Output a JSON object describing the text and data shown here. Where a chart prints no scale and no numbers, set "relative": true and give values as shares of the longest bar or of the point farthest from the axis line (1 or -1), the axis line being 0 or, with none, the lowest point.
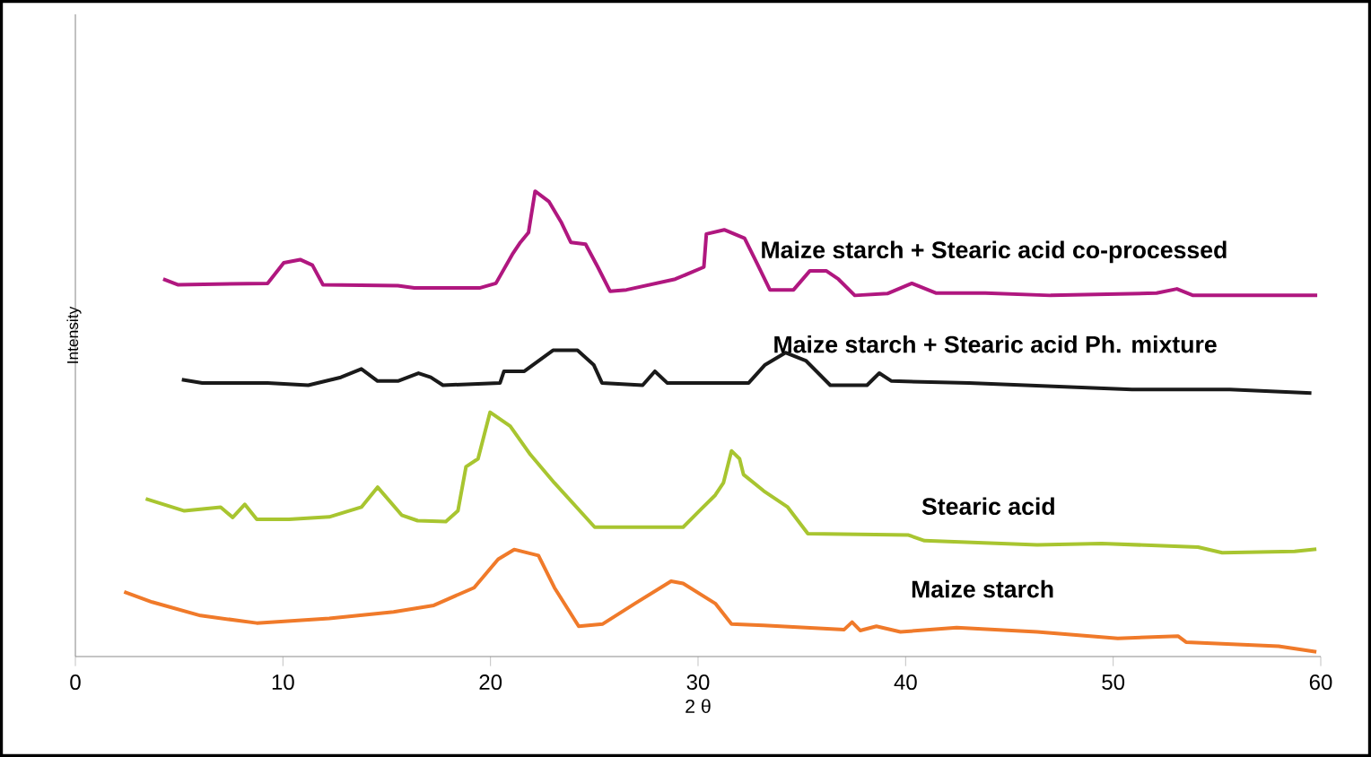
{
  "chart_data": {
    "type": "line",
    "relative": true,
    "xlabel": "2 θ",
    "ylabel": "Intensity",
    "xlim": [
      0,
      60
    ],
    "xticks": [
      0,
      10,
      20,
      30,
      40,
      50,
      60
    ],
    "series": [
      {
        "name": "Maize starch + Stearic acid co-processed",
        "color": "#b0177f",
        "x": [
          4.23,
          4.93,
          9.26,
          10.04,
          10.83,
          11.42,
          11.93,
          15.54,
          16.33,
          19.47,
          20.26,
          21.05,
          21.44,
          21.83,
          22.15,
          22.81,
          23.4,
          23.87,
          24.58,
          25.17,
          25.76,
          26.55,
          28.9,
          30.28,
          30.4,
          31.26,
          32.24,
          32.83,
          33.46,
          34.6,
          35.39,
          36.17,
          36.76,
          37.55,
          39.12,
          40.3,
          41.48,
          43.84,
          46.98,
          52.09,
          53.07,
          53.85,
          59.83
        ],
        "values": [
          0.811,
          0.799,
          0.802,
          0.846,
          0.853,
          0.841,
          0.799,
          0.797,
          0.792,
          0.792,
          0.802,
          0.864,
          0.89,
          0.911,
          1,
          0.978,
          0.934,
          0.89,
          0.886,
          0.837,
          0.785,
          0.788,
          0.811,
          0.837,
          0.908,
          0.917,
          0.899,
          0.846,
          0.788,
          0.788,
          0.829,
          0.829,
          0.811,
          0.776,
          0.78,
          0.802,
          0.781,
          0.781,
          0.776,
          0.781,
          0.79,
          0.776,
          0.776
        ]
      },
      {
        "name": "Maize starch + Stearic acid Ph. mixture",
        "color": "#1a1a1a",
        "x": [
          5.13,
          6.11,
          9.26,
          11.22,
          12.79,
          13.78,
          14.56,
          15.54,
          16.53,
          17.12,
          17.71,
          20.46,
          20.65,
          21.63,
          23.01,
          24.19,
          24.97,
          25.37,
          27.33,
          27.92,
          28.51,
          32.44,
          33.23,
          34.21,
          35.19,
          36.37,
          38.14,
          38.73,
          39.32,
          43.05,
          50.91,
          55.62,
          59.55
        ],
        "values": [
          0.595,
          0.588,
          0.588,
          0.583,
          0.6,
          0.618,
          0.592,
          0.592,
          0.609,
          0.6,
          0.583,
          0.588,
          0.613,
          0.613,
          0.658,
          0.658,
          0.627,
          0.588,
          0.583,
          0.613,
          0.588,
          0.588,
          0.627,
          0.653,
          0.636,
          0.583,
          0.583,
          0.609,
          0.592,
          0.588,
          0.574,
          0.574,
          0.566
        ]
      },
      {
        "name": "Stearic acid",
        "color": "#a8c530",
        "x": [
          3.39,
          5.25,
          7.0,
          7.58,
          8.16,
          8.74,
          10.29,
          12.23,
          13.78,
          14.56,
          15.72,
          16.49,
          17.85,
          18.43,
          18.82,
          19.4,
          19.98,
          20.95,
          21.92,
          23.08,
          25.02,
          29.28,
          30.06,
          30.83,
          31.22,
          31.61,
          32.0,
          32.19,
          33.16,
          34.32,
          35.29,
          40.14,
          40.91,
          46.34,
          49.44,
          54.09,
          55.25,
          58.74,
          59.79
        ],
        "values": [
          0.339,
          0.313,
          0.321,
          0.299,
          0.327,
          0.295,
          0.295,
          0.3,
          0.321,
          0.364,
          0.304,
          0.292,
          0.29,
          0.313,
          0.408,
          0.425,
          0.525,
          0.495,
          0.434,
          0.373,
          0.278,
          0.278,
          0.313,
          0.347,
          0.373,
          0.442,
          0.425,
          0.391,
          0.356,
          0.321,
          0.264,
          0.261,
          0.249,
          0.24,
          0.243,
          0.235,
          0.223,
          0.226,
          0.231
        ]
      },
      {
        "name": "Maize starch",
        "color": "#f07a2a",
        "x": [
          2.35,
          3.7,
          6.03,
          8.74,
          12.23,
          15.33,
          17.27,
          19.21,
          20.37,
          21.14,
          22.31,
          23.08,
          24.25,
          25.41,
          26.96,
          28.7,
          29.28,
          30.83,
          31.61,
          33.16,
          37.04,
          37.42,
          37.81,
          38.59,
          39.75,
          42.46,
          46.34,
          50.22,
          53.12,
          53.51,
          57.97,
          59.79
        ],
        "values": [
          0.139,
          0.117,
          0.088,
          0.072,
          0.082,
          0.096,
          0.11,
          0.148,
          0.209,
          0.23,
          0.217,
          0.148,
          0.065,
          0.07,
          0.114,
          0.162,
          0.157,
          0.114,
          0.07,
          0.067,
          0.058,
          0.074,
          0.056,
          0.065,
          0.053,
          0.062,
          0.053,
          0.039,
          0.044,
          0.031,
          0.022,
          0.01
        ]
      }
    ]
  }
}
